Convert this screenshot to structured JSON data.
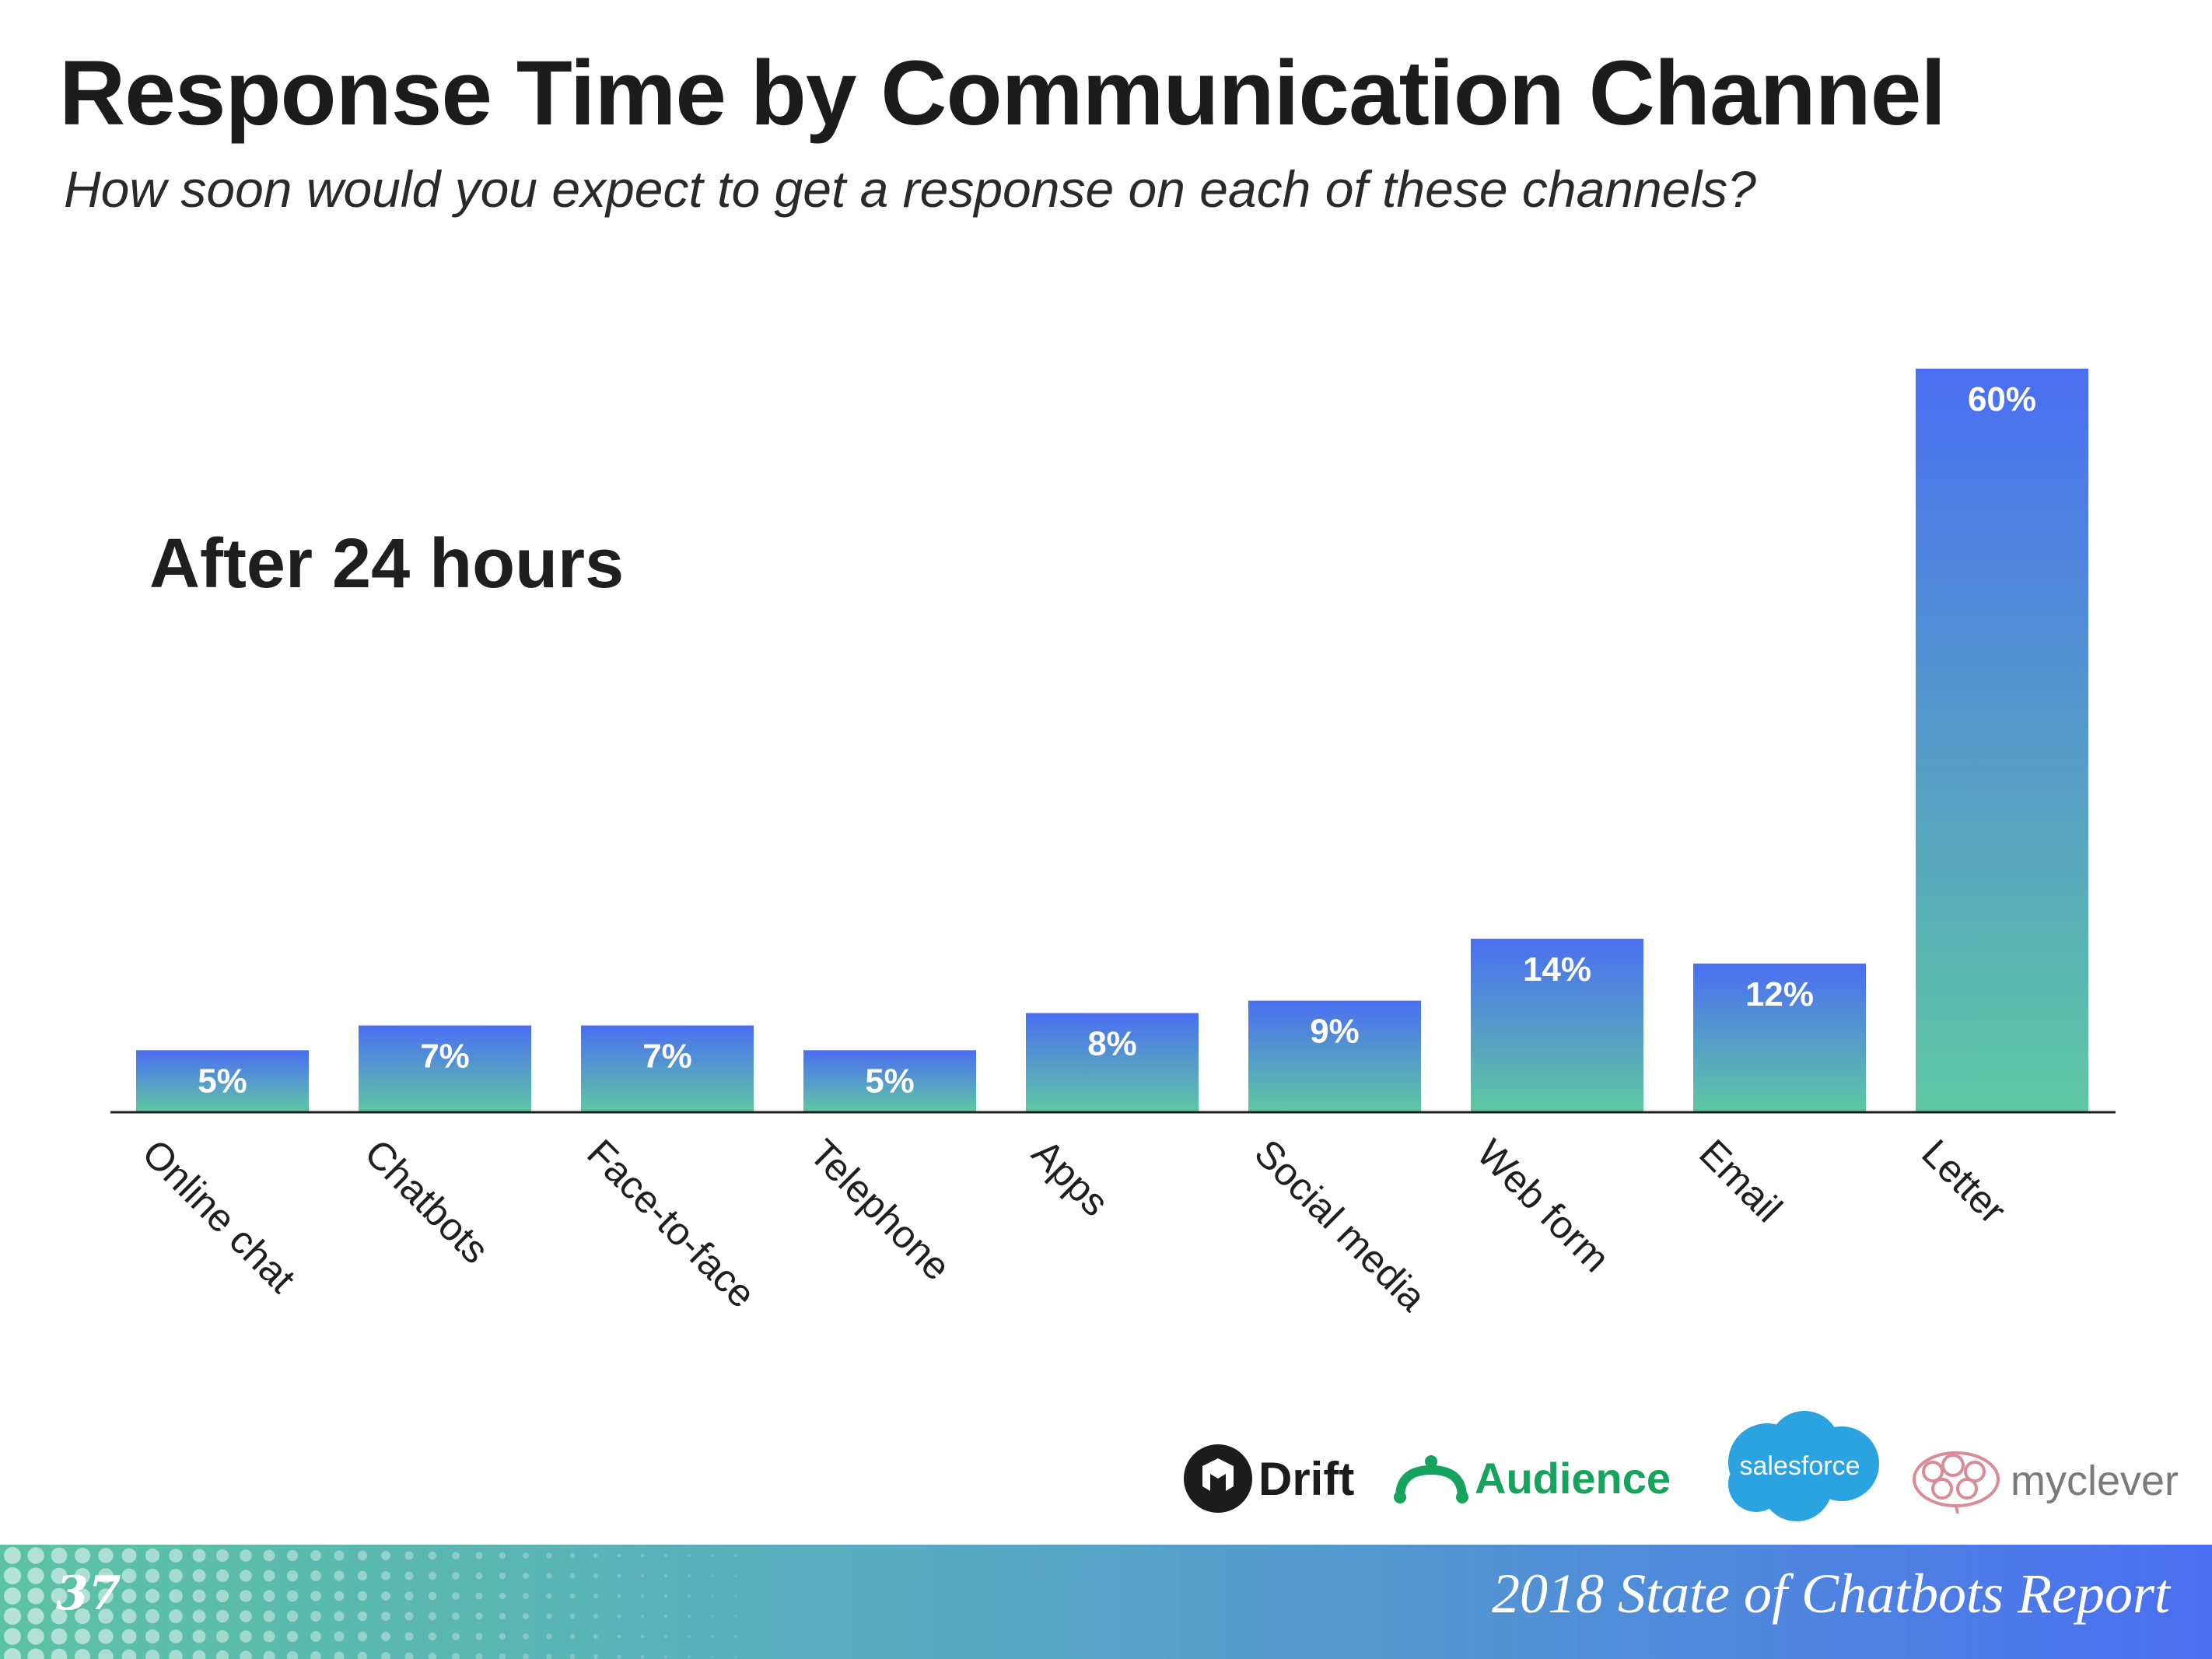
{
  "title": "Response Time by Communication Channel",
  "subtitle": "How soon would you expect to get a response on each of these channels?",
  "chart_data": {
    "type": "bar",
    "title": "Response Time by Communication Channel",
    "annotation": "After 24 hours",
    "categories": [
      "Online chat",
      "Chatbots",
      "Face-to-face",
      "Telephone",
      "Apps",
      "Social media",
      "Web form",
      "Email",
      "Letter"
    ],
    "values": [
      5,
      7,
      7,
      5,
      8,
      9,
      14,
      12,
      60
    ],
    "data_labels": [
      "5%",
      "7%",
      "7%",
      "5%",
      "8%",
      "9%",
      "14%",
      "12%",
      "60%"
    ],
    "unit": "%",
    "ylim": [
      0,
      60
    ],
    "grid": false,
    "xlabel": "",
    "ylabel": "",
    "colors": {
      "bar_top": "#4a6ef2",
      "bar_bottom": "#5fc8a2",
      "label": "#ffffff",
      "axis": "#1f1f1f"
    }
  },
  "logos": {
    "drift": "Drift",
    "audience": "Audience",
    "salesforce": "salesforce",
    "myclever": "myclever",
    "colors": {
      "drift": "#1c1c1c",
      "audience": "#16a35e",
      "salesforce": "#2aa3e0",
      "myclever": "#7a7a7a",
      "myclever_icon": "#d98c96"
    }
  },
  "footer": {
    "page_number": "37",
    "report_title": "2018 State of Chatbots Report"
  }
}
